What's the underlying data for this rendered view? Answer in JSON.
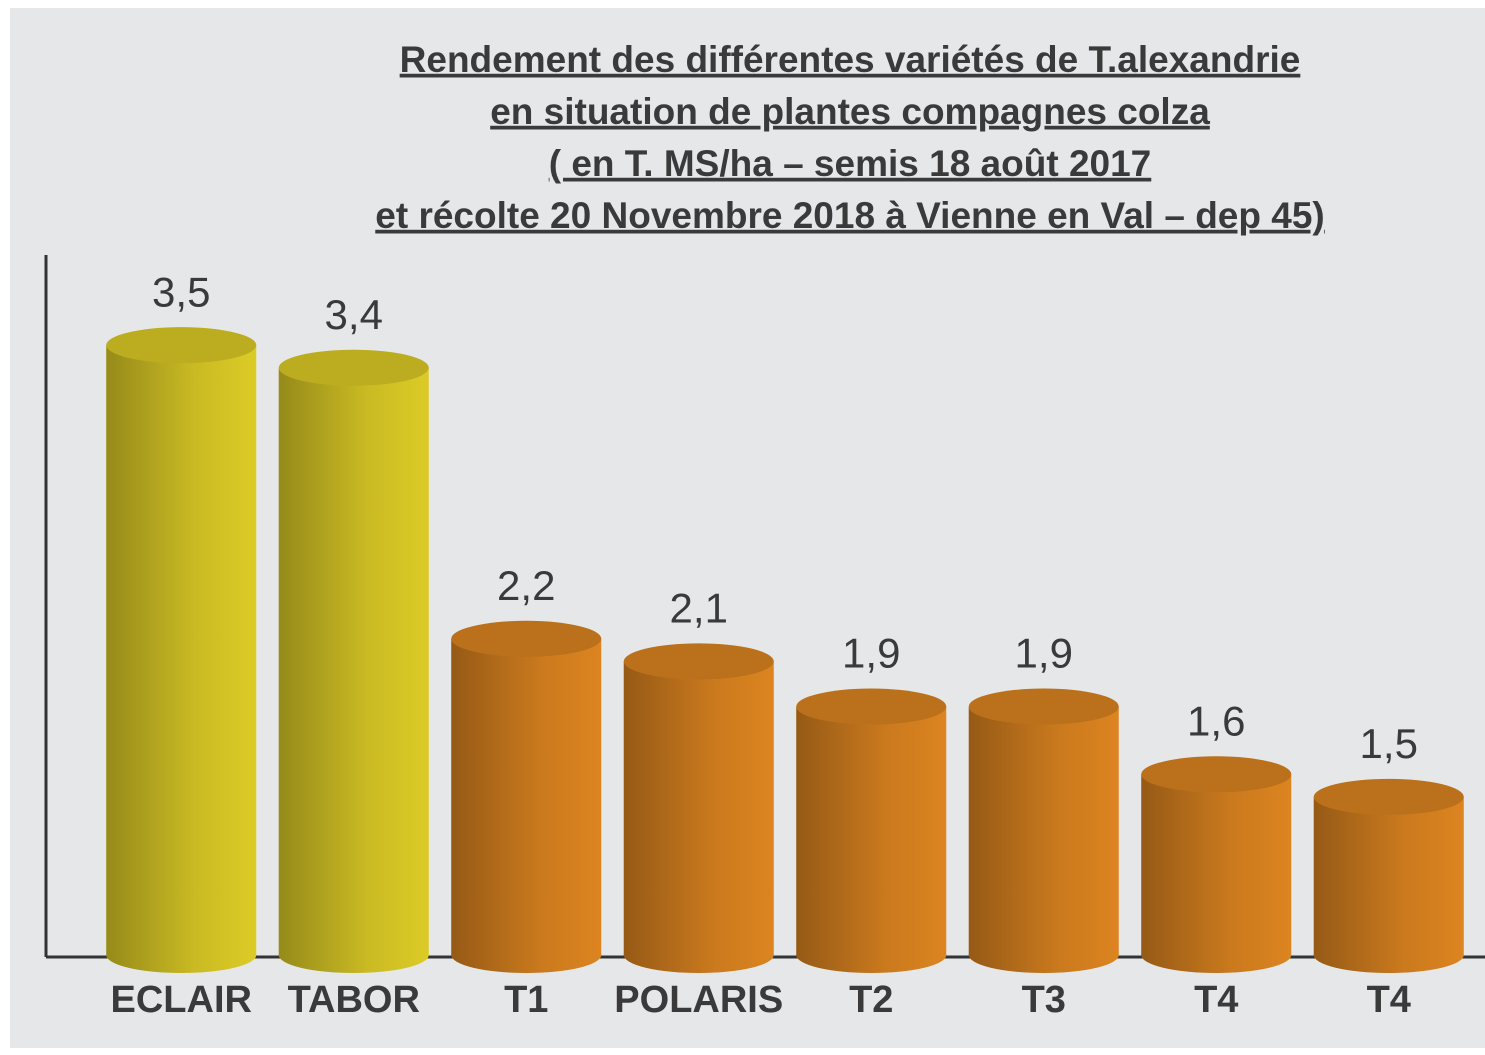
{
  "chart_data": {
    "type": "bar",
    "title": [
      "Rendement des différentes  variétés de T.alexandrie",
      "en situation de plantes compagnes colza",
      "( en T. MS/ha – semis 18 août 2017",
      "et récolte 20 Novembre 2018 à Vienne en Val – dep 45)"
    ],
    "categories": [
      "ECLAIR",
      "TABOR",
      "T1",
      "POLARIS",
      "T2",
      "T3",
      "T4",
      "T4"
    ],
    "values": [
      3.5,
      3.4,
      2.2,
      2.1,
      1.9,
      1.9,
      1.6,
      1.5
    ],
    "value_labels": [
      "3,5",
      "3,4",
      "2,2",
      "2,1",
      "1,9",
      "1,9",
      "1,6",
      "1,5"
    ],
    "colors": [
      "#dccb26",
      "#dccb26",
      "#dc8420",
      "#dc8420",
      "#dc8420",
      "#dc8420",
      "#dc8420",
      "#dc8420"
    ],
    "ylim": [
      0.8,
      3.7
    ]
  }
}
